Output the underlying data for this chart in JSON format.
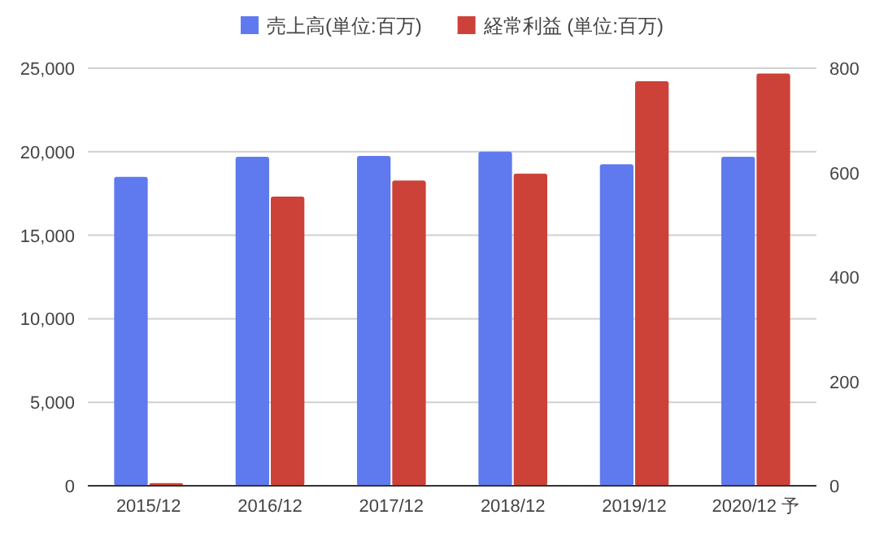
{
  "chart_data": {
    "type": "bar",
    "categories": [
      "2015/12",
      "2016/12",
      "2017/12",
      "2018/12",
      "2019/12",
      "2020/12 予"
    ],
    "series": [
      {
        "name": "売上高(単位:百万)",
        "color": "#5f7aee",
        "values": [
          18500,
          19700,
          19750,
          20000,
          19250,
          19700
        ]
      },
      {
        "name": "経常利益 (単位:百万)",
        "color": "#cc4238",
        "axis": "y2",
        "values": [
          5,
          554,
          585,
          598,
          775,
          790
        ]
      }
    ],
    "ylim": [
      0,
      25000
    ],
    "yticks": [
      0,
      {
        "value": 5000,
        "label": "5,000"
      },
      {
        "value": 10000,
        "label": "10,000"
      },
      {
        "value": 15000,
        "label": "15,000"
      },
      {
        "value": 20000,
        "label": "20,000"
      },
      {
        "value": 25000,
        "label": "25,000"
      }
    ],
    "y2lim": [
      0,
      800
    ],
    "y2ticks": [
      0,
      200,
      400,
      600,
      800
    ],
    "grid": "y",
    "legend": "top"
  }
}
